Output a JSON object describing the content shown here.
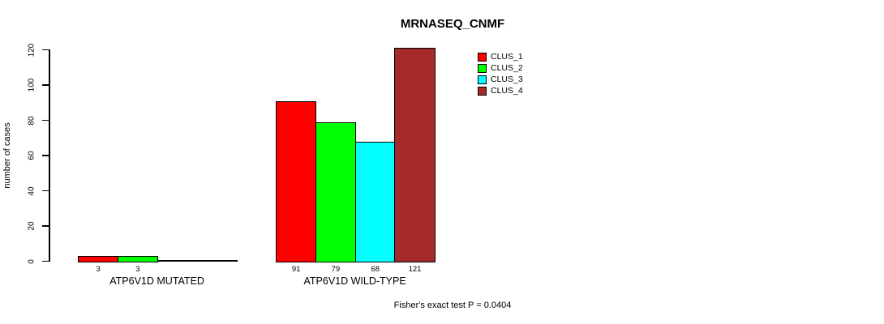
{
  "chart_data": {
    "type": "bar",
    "title": "MRNASEQ_CNMF",
    "ylabel": "number of cases",
    "xlabel": "",
    "categories": [
      "ATP6V1D MUTATED",
      "ATP6V1D WILD-TYPE"
    ],
    "series": [
      {
        "name": "CLUS_1",
        "color": "#ff0000",
        "values": [
          3,
          91
        ]
      },
      {
        "name": "CLUS_2",
        "color": "#00ff00",
        "values": [
          3,
          79
        ]
      },
      {
        "name": "CLUS_3",
        "color": "#00ffff",
        "values": [
          0,
          68
        ]
      },
      {
        "name": "CLUS_4",
        "color": "#a52a2a",
        "values": [
          0,
          121
        ]
      }
    ],
    "bar_value_labels": [
      [
        "3",
        "3",
        "",
        ""
      ],
      [
        "91",
        "79",
        "68",
        "121"
      ]
    ],
    "ylim": [
      0,
      120
    ],
    "yticks": [
      0,
      20,
      40,
      60,
      80,
      100,
      120
    ],
    "grid": false,
    "legend": {
      "position": "top-right",
      "entries": [
        "CLUS_1",
        "CLUS_2",
        "CLUS_3",
        "CLUS_4"
      ]
    },
    "annotation": "Fisher's exact test P = 0.0404"
  }
}
